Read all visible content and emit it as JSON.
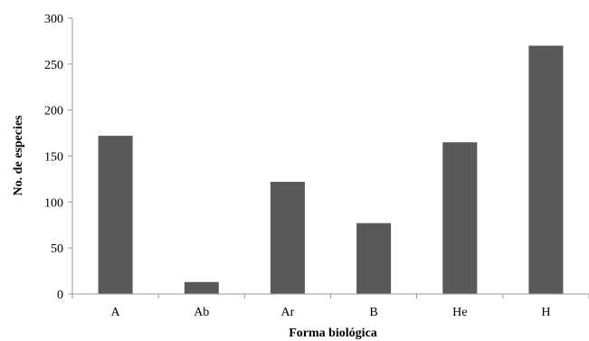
{
  "chart_data": {
    "type": "bar",
    "categories": [
      "A",
      "Ab",
      "Ar",
      "B",
      "He",
      "H"
    ],
    "values": [
      172,
      13,
      122,
      77,
      165,
      270
    ],
    "xlabel": "Forma biológica",
    "ylabel": "No. de especies",
    "ylim": [
      0,
      300
    ],
    "yticks": [
      0,
      50,
      100,
      150,
      200,
      250,
      300
    ],
    "grid": false,
    "legend": "none",
    "colors": {
      "bar": "#595959",
      "axis": "#9a9a9a"
    }
  }
}
